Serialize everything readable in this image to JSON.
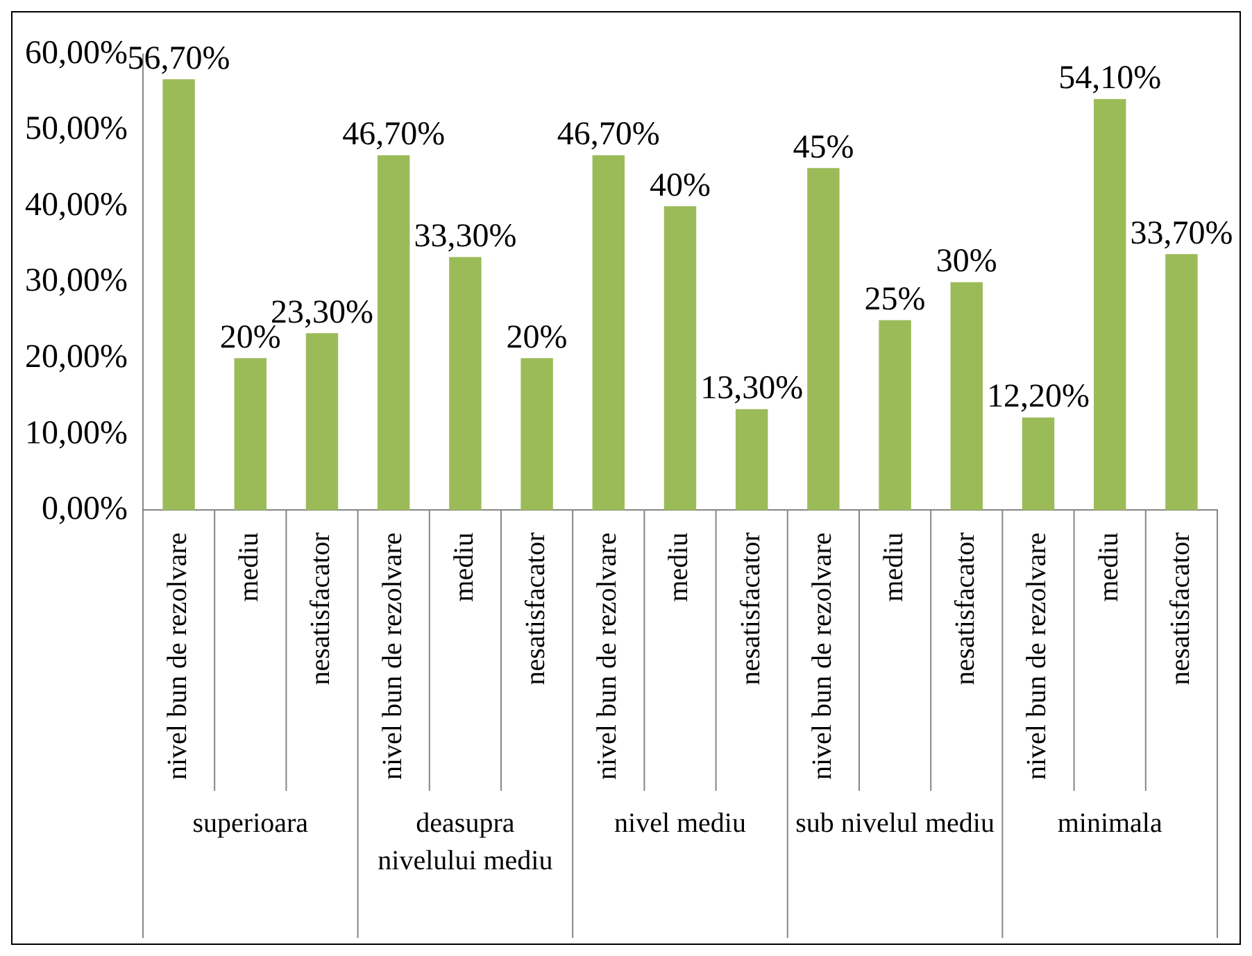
{
  "chart_data": {
    "type": "bar",
    "categories": [
      "nivel bun de rezolvare",
      "mediu",
      "nesatisfacator",
      "nivel bun de rezolvare",
      "mediu",
      "nesatisfacator",
      "nivel bun de rezolvare",
      "mediu",
      "nesatisfacator",
      "nivel bun de rezolvare",
      "mediu",
      "nesatisfacator",
      "nivel bun de rezolvare",
      "mediu",
      "nesatisfacator"
    ],
    "values": [
      56.7,
      20,
      23.3,
      46.7,
      33.3,
      20,
      46.7,
      40,
      13.3,
      45,
      25,
      30,
      12.2,
      54.1,
      33.7
    ],
    "value_labels": [
      "56,70%",
      "20%",
      "23,30%",
      "46,70%",
      "33,30%",
      "20%",
      "46,70%",
      "40%",
      "13,30%",
      "45%",
      "25%",
      "30%",
      "12,20%",
      "54,10%",
      "33,70%"
    ],
    "color": "#9bbb59",
    "ylim": [
      0,
      60
    ],
    "yticks": [
      {
        "value": 0,
        "label": "0,00%"
      },
      {
        "value": 10,
        "label": "10,00%"
      },
      {
        "value": 20,
        "label": "20,00%"
      },
      {
        "value": 30,
        "label": "30,00%"
      },
      {
        "value": 40,
        "label": "40,00%"
      },
      {
        "value": 50,
        "label": "50,00%"
      },
      {
        "value": 60,
        "label": "60,00%"
      }
    ],
    "annotations": [
      "superioara",
      "deasupra nivelului mediu",
      "nivel mediu",
      "sub nivelul mediu",
      "minimala"
    ],
    "grid": false,
    "legend": false
  }
}
